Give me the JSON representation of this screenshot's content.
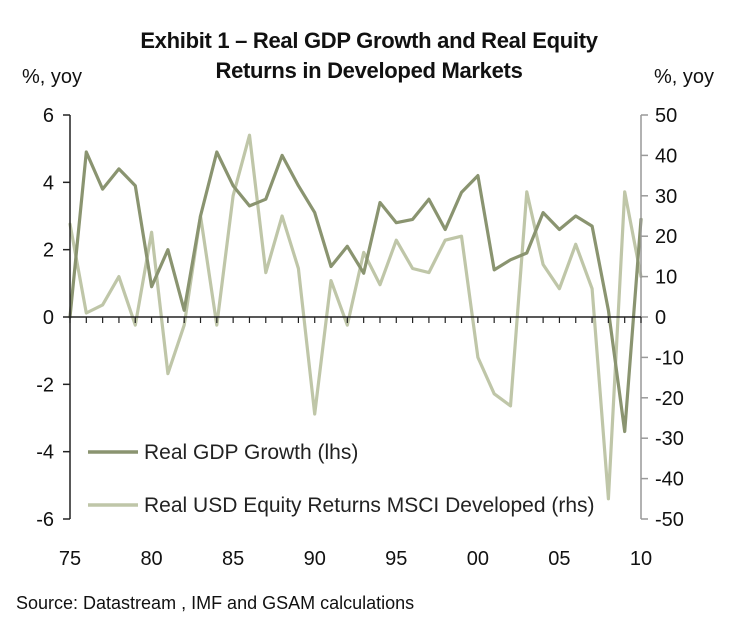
{
  "title_line1": "Exhibit 1 – Real GDP Growth and Real Equity",
  "title_line2": "Returns in Developed Markets",
  "left_unit": "%, yoy",
  "right_unit": "%, yoy",
  "source": "Source: Datastream , IMF and GSAM calculations",
  "colors": {
    "gdp": "#8a9470",
    "equity": "#bfc6a8",
    "axis": "#222222",
    "right_axis": "#999999"
  },
  "chart_data": {
    "type": "line",
    "x": [
      1975,
      1976,
      1977,
      1978,
      1979,
      1980,
      1981,
      1982,
      1983,
      1984,
      1985,
      1986,
      1987,
      1988,
      1989,
      1990,
      1991,
      1992,
      1993,
      1994,
      1995,
      1996,
      1997,
      1998,
      1999,
      2000,
      2001,
      2002,
      2003,
      2004,
      2005,
      2006,
      2007,
      2008,
      2009,
      2010
    ],
    "x_tick_labels": [
      "75",
      "80",
      "85",
      "90",
      "95",
      "00",
      "05",
      "10"
    ],
    "x_tick_values": [
      1975,
      1980,
      1985,
      1990,
      1995,
      2000,
      2005,
      2010
    ],
    "xlim": [
      1975,
      2010
    ],
    "y_left_lim": [
      -6,
      6
    ],
    "y_left_ticks": [
      6,
      4,
      2,
      0,
      -2,
      -4,
      -6
    ],
    "y_right_lim": [
      -50,
      50
    ],
    "y_right_ticks": [
      50,
      40,
      30,
      20,
      10,
      0,
      -10,
      -20,
      -30,
      -40,
      -50
    ],
    "series": [
      {
        "name": "Real GDP Growth (lhs)",
        "axis": "left",
        "values": [
          0.0,
          4.9,
          3.8,
          4.4,
          3.9,
          0.9,
          2.0,
          0.2,
          3.0,
          4.9,
          3.9,
          3.3,
          3.5,
          4.8,
          3.9,
          3.1,
          1.5,
          2.1,
          1.3,
          3.4,
          2.8,
          2.9,
          3.5,
          2.6,
          3.7,
          4.2,
          1.4,
          1.7,
          1.9,
          3.1,
          2.6,
          3.0,
          2.7,
          0.2,
          -3.4,
          2.9
        ]
      },
      {
        "name": "Real USD Equity Returns MSCI Developed (rhs)",
        "axis": "right",
        "values": [
          23,
          1,
          3,
          10,
          -2,
          21,
          -14,
          -2,
          25,
          -2,
          30,
          45,
          11,
          25,
          12,
          -24,
          9,
          -2,
          16,
          8,
          19,
          12,
          11,
          19,
          20,
          -10,
          -19,
          -22,
          31,
          13,
          7,
          18,
          7,
          -45,
          31,
          10
        ]
      }
    ],
    "legend_location": "lower-left, inside plot"
  }
}
